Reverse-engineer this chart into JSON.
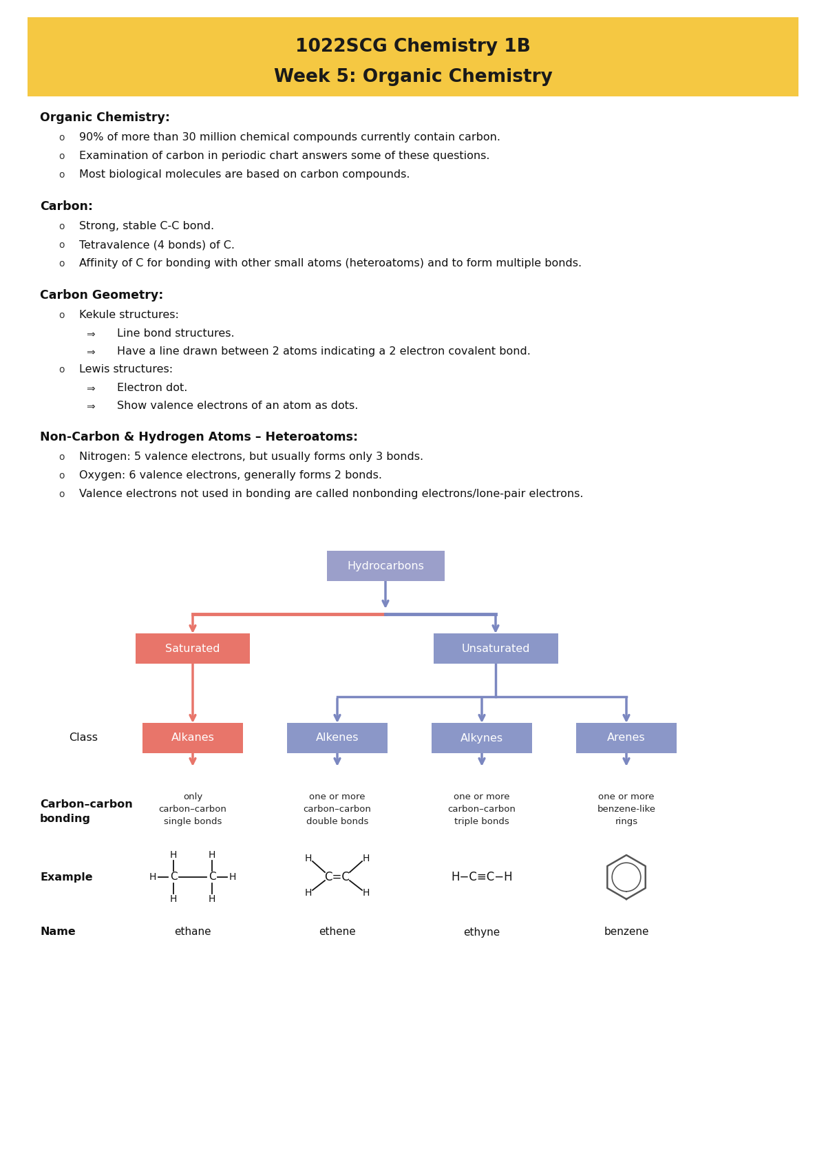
{
  "title1": "1022SCG Chemistry 1B",
  "title2": "Week 5: Organic Chemistry",
  "header_bg": "#F5C842",
  "header_text": "#1a1a1a",
  "body_bg": "#ffffff",
  "section1_title": "Organic Chemistry:",
  "section1_bullets": [
    "90% of more than 30 million chemical compounds currently contain carbon.",
    "Examination of carbon in periodic chart answers some of these questions.",
    "Most biological molecules are based on carbon compounds."
  ],
  "section2_title": "Carbon:",
  "section2_bullets": [
    "Strong, stable C-C bond.",
    "Tetravalence (4 bonds) of C.",
    "Affinity of C for bonding with other small atoms (heteroatoms) and to form multiple bonds."
  ],
  "section3_title": "Carbon Geometry:",
  "section3_sub": [
    {
      "bullet": "Kekule structures:",
      "sub": [
        "Line bond structures.",
        "Have a line drawn between 2 atoms indicating a 2 electron covalent bond."
      ]
    },
    {
      "bullet": "Lewis structures:",
      "sub": [
        "Electron dot.",
        "Show valence electrons of an atom as dots."
      ]
    }
  ],
  "section4_title": "Non-Carbon & Hydrogen Atoms – Heteroatoms:",
  "section4_bullets": [
    "Nitrogen: 5 valence electrons, but usually forms only 3 bonds.",
    "Oxygen: 6 valence electrons, generally forms 2 bonds.",
    "Valence electrons not used in bonding are called nonbonding electrons/lone-pair electrons."
  ],
  "sat_color": "#E8756A",
  "unsat_color": "#8B97C8",
  "alkanes_color": "#E8756A",
  "others_color": "#8B97C8",
  "hydro_color": "#9B9FCA",
  "arrow_red": "#E8756A",
  "arrow_blue": "#7B87C0"
}
